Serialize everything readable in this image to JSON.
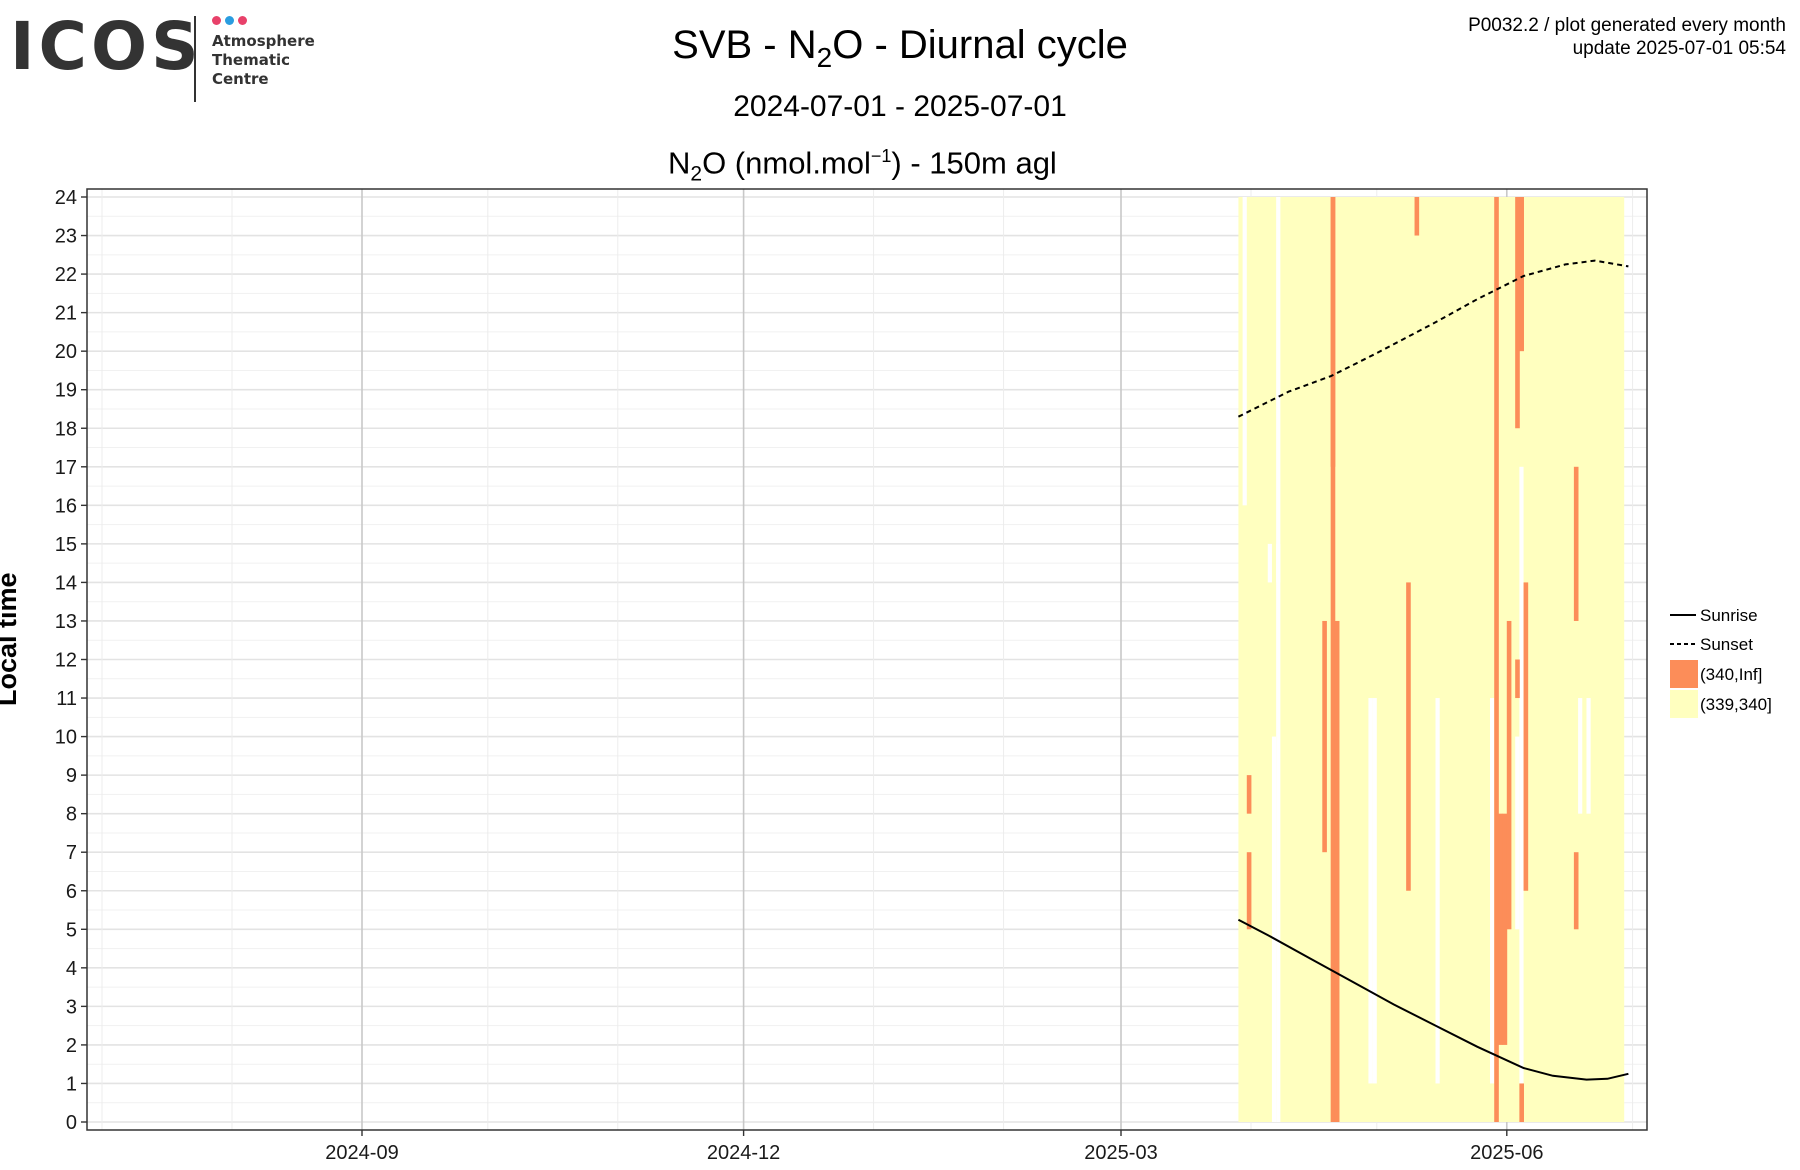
{
  "logo": {
    "wordmark": "ICOS",
    "lines": [
      "Atmosphere",
      "Thematic",
      "Centre"
    ],
    "dot_colors": [
      "#e8416a",
      "#2a9de0",
      "#e8416a"
    ]
  },
  "header": {
    "title_parts": [
      "SVB - N",
      "2",
      "O - Diurnal cycle"
    ],
    "subtitle": "2024-07-01 - 2025-07-01",
    "gas_parts": [
      "N",
      "2",
      "O (nmol.mol",
      "−1",
      ") - 150m agl"
    ],
    "plot_id": "P0032.2 / plot generated every month",
    "update": "update  2025-07-01 05:54"
  },
  "chart_data": {
    "type": "heatmap",
    "title": "SVB - N2O - Diurnal cycle",
    "subtitle": "2024-07-01 - 2025-07-01",
    "xlabel": "",
    "ylabel": "Local time",
    "xlim": [
      "2024-07-01",
      "2025-07-01"
    ],
    "ylim": [
      0,
      24
    ],
    "x_ticks": [
      "2024-09",
      "2024-12",
      "2025-03",
      "2025-06"
    ],
    "y_ticks": [
      0,
      1,
      2,
      3,
      4,
      5,
      6,
      7,
      8,
      9,
      10,
      11,
      12,
      13,
      14,
      15,
      16,
      17,
      18,
      19,
      20,
      21,
      22,
      23,
      24
    ],
    "grid": true,
    "legend_position": "right",
    "legend": [
      {
        "label": "Sunrise",
        "style": "solid-line"
      },
      {
        "label": "Sunset",
        "style": "dashed-line"
      },
      {
        "label": "(340,Inf]",
        "color": "#fc8d59"
      },
      {
        "label": "(339,340]",
        "color": "#ffffbf"
      }
    ],
    "bins": [
      {
        "label": "(339,340]",
        "color": "#ffffbf"
      },
      {
        "label": "(340,Inf]",
        "color": "#fc8d59"
      }
    ],
    "background_period": [
      "2025-03-29",
      "2025-06-29"
    ],
    "background_bin": "(339,340]",
    "gaps": [
      {
        "date": "2025-03-30",
        "hours": [
          16,
          24
        ]
      },
      {
        "date": "2025-04-05",
        "hours": [
          14,
          15
        ]
      },
      {
        "date": "2025-04-06",
        "hours": [
          0,
          10
        ]
      },
      {
        "date": "2025-04-07",
        "hours": [
          14,
          15
        ]
      },
      {
        "date": "2025-04-07",
        "hours": [
          0,
          24
        ]
      },
      {
        "date": "2025-04-29",
        "hours": [
          1,
          11
        ]
      },
      {
        "date": "2025-04-30",
        "hours": [
          1,
          11
        ]
      },
      {
        "date": "2025-05-15",
        "hours": [
          1,
          11
        ]
      },
      {
        "date": "2025-05-28",
        "hours": [
          1,
          11
        ]
      },
      {
        "date": "2025-06-03",
        "hours": [
          5,
          10
        ]
      },
      {
        "date": "2025-06-04",
        "hours": [
          1,
          17
        ]
      },
      {
        "date": "2025-06-18",
        "hours": [
          8,
          11
        ]
      },
      {
        "date": "2025-06-20",
        "hours": [
          8,
          11
        ]
      }
    ],
    "high_cells": [
      {
        "date": "2025-03-31",
        "hours": [
          8,
          9
        ]
      },
      {
        "date": "2025-03-31",
        "hours": [
          5,
          7
        ]
      },
      {
        "date": "2025-04-20",
        "hours": [
          17,
          24
        ]
      },
      {
        "date": "2025-04-20",
        "hours": [
          0,
          24
        ]
      },
      {
        "date": "2025-04-21",
        "hours": [
          0,
          13
        ]
      },
      {
        "date": "2025-04-18",
        "hours": [
          7,
          13
        ]
      },
      {
        "date": "2025-05-08",
        "hours": [
          6,
          14
        ]
      },
      {
        "date": "2025-05-10",
        "hours": [
          23,
          24
        ]
      },
      {
        "date": "2025-05-29",
        "hours": [
          0,
          24
        ]
      },
      {
        "date": "2025-05-30",
        "hours": [
          2,
          8
        ]
      },
      {
        "date": "2025-05-31",
        "hours": [
          2,
          8
        ]
      },
      {
        "date": "2025-06-01",
        "hours": [
          5,
          13
        ]
      },
      {
        "date": "2025-06-03",
        "hours": [
          18,
          24
        ]
      },
      {
        "date": "2025-06-03",
        "hours": [
          11,
          12
        ]
      },
      {
        "date": "2025-06-04",
        "hours": [
          20,
          24
        ]
      },
      {
        "date": "2025-06-05",
        "hours": [
          6,
          14
        ]
      },
      {
        "date": "2025-06-04",
        "hours": [
          0,
          1
        ]
      },
      {
        "date": "2025-06-17",
        "hours": [
          13,
          17
        ]
      },
      {
        "date": "2025-06-17",
        "hours": [
          5,
          7
        ]
      }
    ],
    "sunrise": {
      "x": [
        "2025-03-29",
        "2025-04-05",
        "2025-04-15",
        "2025-04-25",
        "2025-05-05",
        "2025-05-15",
        "2025-05-25",
        "2025-06-05",
        "2025-06-12",
        "2025-06-20",
        "2025-06-25",
        "2025-06-30"
      ],
      "y": [
        5.25,
        4.85,
        4.25,
        3.65,
        3.05,
        2.5,
        1.95,
        1.4,
        1.2,
        1.1,
        1.12,
        1.25
      ]
    },
    "sunset": {
      "x": [
        "2025-03-29",
        "2025-04-10",
        "2025-04-20",
        "2025-05-01",
        "2025-05-15",
        "2025-05-25",
        "2025-06-05",
        "2025-06-15",
        "2025-06-22",
        "2025-06-30"
      ],
      "y": [
        18.3,
        18.95,
        19.35,
        19.95,
        20.75,
        21.35,
        21.95,
        22.25,
        22.35,
        22.2
      ]
    }
  }
}
